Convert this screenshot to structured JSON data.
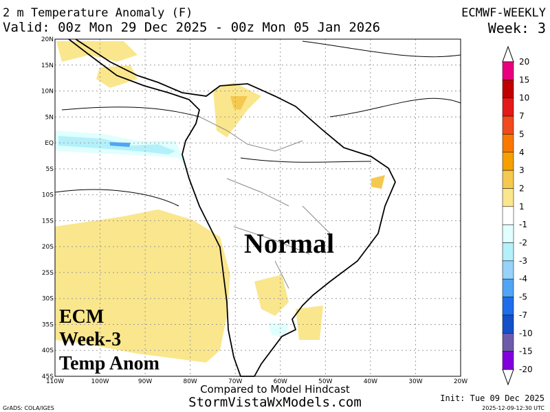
{
  "header": {
    "title": "2 m Temperature Anomaly (F)",
    "valid": "Valid: 00z Mon 29 Dec 2025 - 00z Mon 05 Jan 2026",
    "model": "ECMWF-WEEKLY",
    "week": "Week: 3"
  },
  "map": {
    "lat_labels": [
      "20N",
      "15N",
      "10N",
      "5N",
      "EQ",
      "5S",
      "10S",
      "15S",
      "20S",
      "25S",
      "30S",
      "35S",
      "40S",
      "45S"
    ],
    "lon_labels": [
      "110W",
      "100W",
      "90W",
      "80W",
      "70W",
      "60W",
      "50W",
      "40W",
      "30W",
      "20W"
    ],
    "overlay": "Normal",
    "caption": [
      "ECM",
      "Week-3",
      "Temp Anom"
    ]
  },
  "colorbar": {
    "levels": [
      20,
      15,
      10,
      7,
      5,
      4,
      3,
      2,
      1,
      -1,
      -2,
      -3,
      -4,
      -5,
      -7,
      -10,
      -15,
      -20
    ],
    "colors": [
      "#e8007e",
      "#c00000",
      "#e41a1a",
      "#f04a1e",
      "#fa7800",
      "#f5a000",
      "#f5c850",
      "#fae68c",
      "#ffffff",
      "#e0ffff",
      "#b4f0fa",
      "#96d2fa",
      "#50a5f5",
      "#1e6eeb",
      "#1450c8",
      "#6e5aaa",
      "#8200dc"
    ]
  },
  "footer": {
    "note": "Compared to Model Hindcast",
    "site": "StormVistaWxModels.com",
    "init": "Init: Tue 09 Dec 2025",
    "grads": "GrADS: COLA/IGES",
    "stamp": "2025-12-09-12:30 UTC"
  }
}
